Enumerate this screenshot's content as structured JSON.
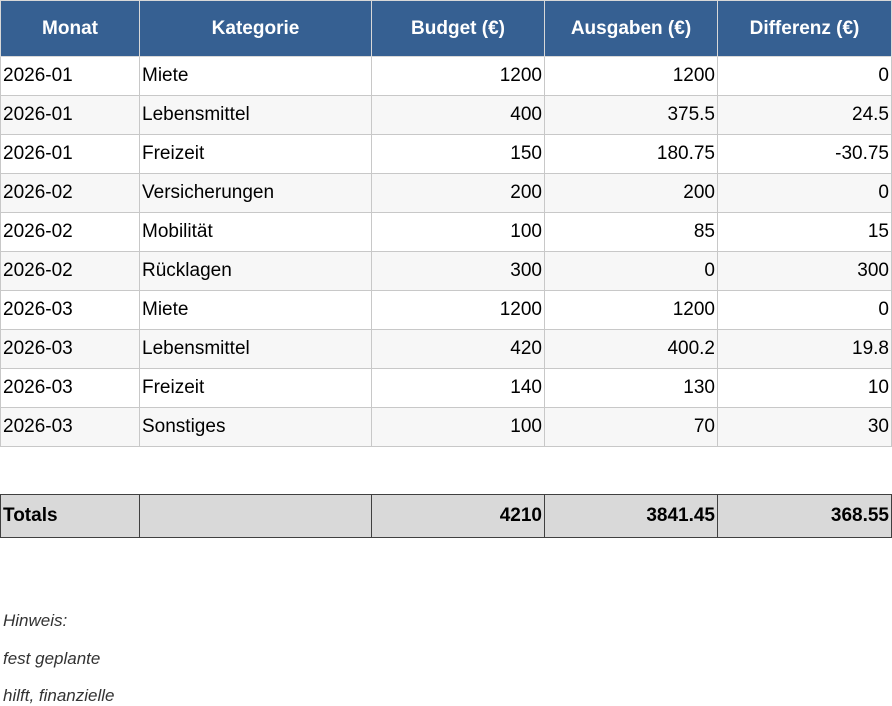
{
  "headers": [
    "Monat",
    "Kategorie",
    "Budget (€)",
    "Ausgaben (€)",
    "Differenz (€)"
  ],
  "rows": [
    [
      "2026-01",
      "Miete",
      "1200",
      "1200",
      "0"
    ],
    [
      "2026-01",
      "Lebensmittel",
      "400",
      "375.5",
      "24.5"
    ],
    [
      "2026-01",
      "Freizeit",
      "150",
      "180.75",
      "-30.75"
    ],
    [
      "2026-02",
      "Versicherungen",
      "200",
      "200",
      "0"
    ],
    [
      "2026-02",
      "Mobilität",
      "100",
      "85",
      "15"
    ],
    [
      "2026-02",
      "Rücklagen",
      "300",
      "0",
      "300"
    ],
    [
      "2026-03",
      "Miete",
      "1200",
      "1200",
      "0"
    ],
    [
      "2026-03",
      "Lebensmittel",
      "420",
      "400.2",
      "19.8"
    ],
    [
      "2026-03",
      "Freizeit",
      "140",
      "130",
      "10"
    ],
    [
      "2026-03",
      "Sonstiges",
      "100",
      "70",
      "30"
    ]
  ],
  "totals": [
    "Totals",
    "",
    "4210",
    "3841.45",
    "368.55"
  ],
  "note": [
    "Hinweis:",
    "fest geplante",
    "hilft, finanzielle"
  ],
  "colors": {
    "header_bg": "#366092",
    "totals_bg": "#d9d9d9"
  }
}
